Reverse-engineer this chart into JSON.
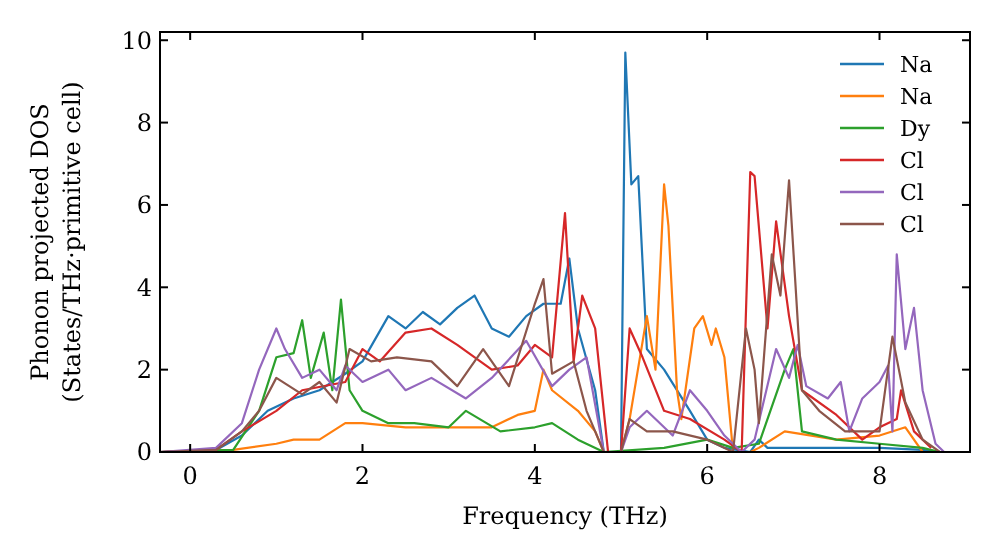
{
  "chart_data": {
    "type": "line",
    "xlabel": "Frequency (THz)",
    "ylabel": "Phonon projected DOS\n(States/THz·primitive cell)",
    "xlim": [
      -0.35,
      9.05
    ],
    "ylim": [
      0,
      10.2
    ],
    "xticks": [
      0,
      2,
      4,
      6,
      8
    ],
    "yticks": [
      0,
      2,
      4,
      6,
      8,
      10
    ],
    "grid": false,
    "legend": "top right",
    "marker": "none",
    "line_style": "solid",
    "series": [
      {
        "name": "Na",
        "color": "#1f77b4",
        "x": [
          -0.35,
          0.3,
          0.6,
          0.9,
          1.2,
          1.5,
          1.8,
          2.0,
          2.3,
          2.5,
          2.7,
          2.9,
          3.1,
          3.3,
          3.5,
          3.7,
          3.9,
          4.1,
          4.3,
          4.4,
          4.5,
          4.7,
          4.8,
          5.0,
          5.05,
          5.12,
          5.2,
          5.3,
          5.5,
          5.8,
          6.0,
          6.2,
          6.5,
          6.6,
          6.7,
          7.0,
          7.5,
          8.0,
          8.5,
          8.7
        ],
        "values": [
          0,
          0.05,
          0.4,
          1.0,
          1.3,
          1.5,
          1.9,
          2.2,
          3.3,
          3.0,
          3.4,
          3.1,
          3.5,
          3.8,
          3.0,
          2.8,
          3.3,
          3.6,
          3.6,
          4.7,
          3.0,
          1.5,
          0,
          0,
          9.7,
          6.5,
          6.7,
          2.5,
          2.0,
          1.0,
          0.3,
          0.1,
          0,
          0.3,
          0.1,
          0.1,
          0.1,
          0.1,
          0.05,
          0
        ]
      },
      {
        "name": "Na",
        "color": "#ff7f0e",
        "x": [
          -0.35,
          0.5,
          1.0,
          1.2,
          1.5,
          1.8,
          2.0,
          2.5,
          3.0,
          3.5,
          3.8,
          4.0,
          4.1,
          4.2,
          4.5,
          4.7,
          4.8,
          5.0,
          5.1,
          5.3,
          5.4,
          5.5,
          5.55,
          5.65,
          5.7,
          5.85,
          5.95,
          6.05,
          6.1,
          6.2,
          6.3,
          6.5,
          6.6,
          6.9,
          7.5,
          8.0,
          8.3,
          8.5
        ],
        "values": [
          0,
          0.05,
          0.2,
          0.3,
          0.3,
          0.7,
          0.7,
          0.6,
          0.6,
          0.6,
          0.9,
          1.0,
          2.0,
          1.5,
          1.0,
          0.5,
          0,
          0,
          0.8,
          3.3,
          2.0,
          6.5,
          5.5,
          1.5,
          0.8,
          3.0,
          3.3,
          2.6,
          3.0,
          2.3,
          0,
          0,
          0.1,
          0.5,
          0.3,
          0.4,
          0.6,
          0
        ]
      },
      {
        "name": "Dy",
        "color": "#2ca02c",
        "x": [
          -0.35,
          0.5,
          0.8,
          1.0,
          1.2,
          1.3,
          1.4,
          1.55,
          1.65,
          1.75,
          1.85,
          2.0,
          2.3,
          2.6,
          3.0,
          3.2,
          3.6,
          4.0,
          4.2,
          4.5,
          4.8,
          5.5,
          6.0,
          6.3,
          6.6,
          6.9,
          7.0,
          7.1,
          7.5,
          8.0,
          8.5,
          8.7
        ],
        "values": [
          0,
          0.05,
          1.0,
          2.3,
          2.4,
          3.2,
          1.8,
          2.9,
          1.5,
          3.7,
          1.5,
          1.0,
          0.7,
          0.7,
          0.6,
          1.0,
          0.5,
          0.6,
          0.7,
          0.3,
          0,
          0.1,
          0.3,
          0.1,
          0.2,
          2.0,
          2.5,
          0.5,
          0.3,
          0.2,
          0.1,
          0
        ]
      },
      {
        "name": "Cl",
        "color": "#d62728",
        "x": [
          -0.35,
          0.3,
          0.6,
          1.0,
          1.3,
          1.8,
          2.0,
          2.2,
          2.5,
          2.8,
          3.1,
          3.5,
          3.8,
          4.0,
          4.2,
          4.35,
          4.45,
          4.55,
          4.7,
          4.85,
          5.0,
          5.1,
          5.25,
          5.5,
          5.8,
          6.2,
          6.4,
          6.5,
          6.55,
          6.7,
          6.8,
          6.95,
          7.1,
          7.5,
          7.8,
          8.0,
          8.2,
          8.25,
          8.4,
          8.6
        ],
        "values": [
          0,
          0.05,
          0.5,
          1.0,
          1.5,
          1.7,
          2.5,
          2.2,
          2.9,
          3.0,
          2.6,
          2.0,
          2.1,
          2.6,
          2.3,
          5.8,
          2.2,
          3.8,
          3.0,
          0,
          0,
          3.0,
          2.3,
          1.0,
          0.8,
          0.3,
          0,
          6.8,
          6.7,
          3.0,
          5.6,
          3.3,
          1.5,
          0.9,
          0.3,
          0.6,
          0.8,
          1.5,
          0.5,
          0.1
        ]
      },
      {
        "name": "Cl",
        "color": "#9467bd",
        "x": [
          -0.35,
          0.3,
          0.6,
          0.8,
          1.0,
          1.1,
          1.3,
          1.5,
          1.7,
          1.8,
          2.0,
          2.3,
          2.5,
          2.8,
          3.2,
          3.5,
          3.9,
          4.2,
          4.4,
          4.6,
          4.8,
          5.0,
          5.1,
          5.3,
          5.6,
          5.8,
          6.0,
          6.2,
          6.4,
          6.55,
          6.8,
          6.95,
          7.05,
          7.15,
          7.4,
          7.55,
          7.65,
          7.8,
          8.0,
          8.1,
          8.15,
          8.2,
          8.3,
          8.4,
          8.5,
          8.65,
          8.75
        ],
        "values": [
          0,
          0.1,
          0.7,
          2.0,
          3.0,
          2.5,
          1.8,
          2.0,
          1.5,
          2.1,
          1.7,
          2.0,
          1.5,
          1.8,
          1.3,
          1.8,
          2.7,
          1.6,
          2.0,
          2.3,
          0,
          0,
          0.6,
          1.0,
          0.4,
          1.5,
          1.0,
          0.4,
          0,
          0.3,
          2.5,
          1.8,
          2.6,
          1.6,
          1.3,
          1.7,
          0.5,
          1.3,
          1.7,
          2.1,
          0.5,
          4.8,
          2.5,
          3.5,
          1.5,
          0.2,
          0
        ]
      },
      {
        "name": "Cl",
        "color": "#8c564b",
        "x": [
          -0.35,
          0.3,
          0.6,
          0.8,
          1.0,
          1.3,
          1.5,
          1.7,
          1.85,
          2.1,
          2.4,
          2.8,
          3.1,
          3.4,
          3.7,
          4.0,
          4.1,
          4.2,
          4.45,
          4.6,
          4.8,
          5.0,
          5.1,
          5.3,
          5.6,
          6.0,
          6.3,
          6.45,
          6.55,
          6.6,
          6.75,
          6.85,
          6.95,
          7.1,
          7.3,
          7.6,
          8.0,
          8.15,
          8.3,
          8.5,
          8.7
        ],
        "values": [
          0,
          0.05,
          0.5,
          1.0,
          1.8,
          1.4,
          1.7,
          1.2,
          2.5,
          2.2,
          2.3,
          2.2,
          1.6,
          2.5,
          1.6,
          3.6,
          4.2,
          1.9,
          2.2,
          1.0,
          0,
          0,
          0.8,
          0.5,
          0.5,
          0.3,
          0,
          3.0,
          2.0,
          0.7,
          4.8,
          3.8,
          6.6,
          1.5,
          1.0,
          0.5,
          0.5,
          2.8,
          1.2,
          0.3,
          0
        ]
      }
    ]
  }
}
